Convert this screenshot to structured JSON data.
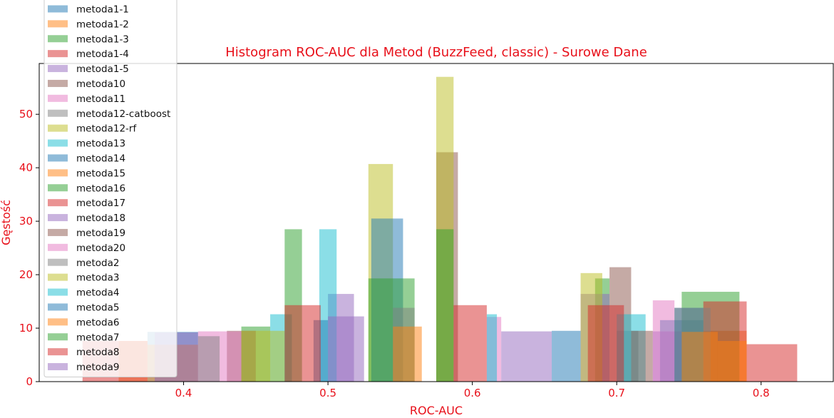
{
  "chart_data": {
    "type": "histogram",
    "title": "Histogram ROC-AUC dla Metod (BuzzFeed, classic) - Surowe Dane",
    "xlabel": "ROC-AUC",
    "ylabel": "Gęstość",
    "xlim": [
      0.3,
      0.85
    ],
    "ylim": [
      0,
      59.5
    ],
    "xticks": [
      0.4,
      0.5,
      0.6,
      0.7,
      0.8
    ],
    "xtick_labels": [
      "0.4",
      "0.5",
      "0.6",
      "0.7",
      "0.8"
    ],
    "yticks": [
      0,
      10,
      20,
      30,
      40,
      50
    ],
    "ytick_labels": [
      "0",
      "10",
      "20",
      "30",
      "40",
      "50"
    ],
    "legend_position": "upper-left",
    "bar_opacity": 0.5,
    "grid": false,
    "series": [
      {
        "name": "metoda1-1",
        "color": "#1f77b4",
        "bins": [
          [
            0.375,
            0.41,
            9.3
          ],
          [
            0.73,
            0.76,
            11.5
          ]
        ]
      },
      {
        "name": "metoda1-2",
        "color": "#ff7f0e",
        "bins": [
          [
            0.375,
            0.41,
            6.9
          ],
          [
            0.76,
            0.79,
            9.5
          ]
        ]
      },
      {
        "name": "metoda1-3",
        "color": "#2ca02c",
        "bins": [
          [
            0.44,
            0.46,
            10.3
          ],
          [
            0.745,
            0.785,
            16.8
          ]
        ]
      },
      {
        "name": "metoda1-4",
        "color": "#d62728",
        "bins": [
          [
            0.33,
            0.355,
            7.6
          ],
          [
            0.76,
            0.79,
            15.0
          ]
        ]
      },
      {
        "name": "metoda1-5",
        "color": "#9467bd",
        "bins": [
          [
            0.62,
            0.655,
            9.4
          ],
          [
            0.725,
            0.745,
            9.4
          ]
        ]
      },
      {
        "name": "metoda10",
        "color": "#8c564b",
        "bins": [
          [
            0.575,
            0.59,
            42.9
          ],
          [
            0.695,
            0.71,
            21.4
          ]
        ]
      },
      {
        "name": "metoda11",
        "color": "#e377c2",
        "bins": [
          [
            0.41,
            0.425,
            9.4
          ],
          [
            0.61,
            0.62,
            12.1
          ]
        ]
      },
      {
        "name": "metoda12-catboost",
        "color": "#7f7f7f",
        "bins": [
          [
            0.41,
            0.425,
            8.5
          ],
          [
            0.7,
            0.715,
            9.5
          ]
        ]
      },
      {
        "name": "metoda12-rf",
        "color": "#bcbd22",
        "bins": [
          [
            0.528,
            0.545,
            40.7
          ],
          [
            0.575,
            0.587,
            57.0
          ]
        ]
      },
      {
        "name": "metoda13",
        "color": "#17becf",
        "bins": [
          [
            0.46,
            0.475,
            12.6
          ],
          [
            0.7,
            0.72,
            12.6
          ]
        ]
      },
      {
        "name": "metoda14",
        "color": "#1f77b4",
        "bins": [
          [
            0.53,
            0.552,
            30.5
          ],
          [
            0.74,
            0.76,
            13.8
          ]
        ]
      },
      {
        "name": "metoda15",
        "color": "#ff7f0e",
        "bins": [
          [
            0.355,
            0.375,
            7.6
          ],
          [
            0.77,
            0.79,
            7.6
          ]
        ]
      },
      {
        "name": "metoda16",
        "color": "#2ca02c",
        "bins": [
          [
            0.528,
            0.56,
            19.3
          ],
          [
            0.685,
            0.695,
            19.3
          ]
        ]
      },
      {
        "name": "metoda17",
        "color": "#d62728",
        "bins": [
          [
            0.355,
            0.375,
            7.6
          ],
          [
            0.79,
            0.825,
            7.0
          ]
        ]
      },
      {
        "name": "metoda18",
        "color": "#9467bd",
        "bins": [
          [
            0.5,
            0.518,
            16.4
          ],
          [
            0.675,
            0.695,
            16.4
          ]
        ]
      },
      {
        "name": "metoda19",
        "color": "#8c564b",
        "bins": [
          [
            0.43,
            0.45,
            9.5
          ],
          [
            0.71,
            0.725,
            9.5
          ]
        ]
      },
      {
        "name": "metoda20",
        "color": "#e377c2",
        "bins": [
          [
            0.425,
            0.44,
            9.4
          ],
          [
            0.725,
            0.74,
            15.2
          ]
        ]
      },
      {
        "name": "metoda2",
        "color": "#7f7f7f",
        "bins": [
          [
            0.545,
            0.56,
            13.8
          ],
          [
            0.74,
            0.765,
            13.8
          ]
        ]
      },
      {
        "name": "metoda3",
        "color": "#bcbd22",
        "bins": [
          [
            0.44,
            0.47,
            9.5
          ],
          [
            0.675,
            0.69,
            20.3
          ]
        ]
      },
      {
        "name": "metoda4",
        "color": "#17becf",
        "bins": [
          [
            0.494,
            0.506,
            28.5
          ],
          [
            0.61,
            0.617,
            12.6
          ]
        ]
      },
      {
        "name": "metoda5",
        "color": "#1f77b4",
        "bins": [
          [
            0.49,
            0.5,
            11.5
          ],
          [
            0.655,
            0.675,
            9.5
          ]
        ]
      },
      {
        "name": "metoda6",
        "color": "#ff7f0e",
        "bins": [
          [
            0.545,
            0.565,
            10.3
          ],
          [
            0.745,
            0.77,
            9.3
          ]
        ]
      },
      {
        "name": "metoda7",
        "color": "#2ca02c",
        "bins": [
          [
            0.47,
            0.482,
            28.5
          ],
          [
            0.575,
            0.587,
            28.5
          ]
        ]
      },
      {
        "name": "metoda8",
        "color": "#d62728",
        "bins": [
          [
            0.47,
            0.495,
            14.3
          ],
          [
            0.587,
            0.61,
            14.3
          ],
          [
            0.68,
            0.705,
            14.3
          ]
        ]
      },
      {
        "name": "metoda9",
        "color": "#9467bd",
        "bins": [
          [
            0.38,
            0.41,
            9.2
          ],
          [
            0.5,
            0.525,
            12.2
          ]
        ]
      }
    ]
  }
}
